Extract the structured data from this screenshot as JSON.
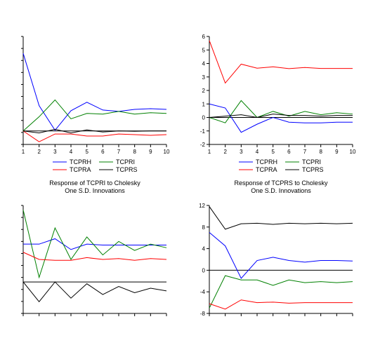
{
  "chart_data": [
    {
      "type": "line",
      "title": "",
      "x": [
        1,
        2,
        3,
        4,
        5,
        6,
        7,
        8,
        9,
        10
      ],
      "xticks": [
        "1",
        "2",
        "3",
        "4",
        "5",
        "6",
        "7",
        "8",
        "9",
        "10"
      ],
      "ylim": [
        -0.4,
        2.8
      ],
      "yticks": [],
      "zero_line": true,
      "series": [
        {
          "name": "TCPRH",
          "color": "#0000ff",
          "values": [
            2.3,
            0.75,
            0.02,
            0.6,
            0.85,
            0.62,
            0.58,
            0.64,
            0.66,
            0.64
          ]
        },
        {
          "name": "TCPRI",
          "color": "#008000",
          "values": [
            0.0,
            0.42,
            0.92,
            0.36,
            0.52,
            0.5,
            0.58,
            0.5,
            0.54,
            0.52
          ]
        },
        {
          "name": "TCPRA",
          "color": "#ff0000",
          "values": [
            0.0,
            -0.32,
            -0.09,
            -0.09,
            -0.15,
            -0.15,
            -0.09,
            -0.11,
            -0.13,
            -0.11
          ]
        },
        {
          "name": "TCPRS",
          "color": "#000000",
          "values": [
            0.0,
            -0.06,
            0.05,
            -0.06,
            0.03,
            -0.03,
            0.0,
            -0.01,
            0.0,
            0.0
          ]
        }
      ],
      "legend": {
        "placement": "bottom",
        "entries": [
          "TCPRH",
          "TCPRI",
          "TCPRA",
          "TCPRS"
        ]
      }
    },
    {
      "type": "line",
      "title": "",
      "x": [
        1,
        2,
        3,
        4,
        5,
        6,
        7,
        8,
        9,
        10
      ],
      "xticks": [
        "1",
        "2",
        "3",
        "4",
        "5",
        "6",
        "7",
        "8",
        "9",
        "10"
      ],
      "ylim": [
        -2,
        6
      ],
      "yticks": [
        "-2",
        "-1",
        "0",
        "1",
        "2",
        "3",
        "4",
        "5",
        "6"
      ],
      "zero_line": true,
      "series": [
        {
          "name": "TCPRH",
          "color": "#0000ff",
          "values": [
            1.0,
            0.7,
            -1.1,
            -0.5,
            0.0,
            -0.35,
            -0.4,
            -0.4,
            -0.35,
            -0.35
          ]
        },
        {
          "name": "TCPRI",
          "color": "#008000",
          "values": [
            0.0,
            -0.4,
            1.25,
            0.0,
            0.45,
            0.1,
            0.45,
            0.2,
            0.35,
            0.25
          ]
        },
        {
          "name": "TCPRA",
          "color": "#ff0000",
          "values": [
            5.7,
            2.55,
            3.95,
            3.65,
            3.75,
            3.62,
            3.7,
            3.63,
            3.63,
            3.63
          ]
        },
        {
          "name": "TCPRS",
          "color": "#000000",
          "values": [
            0.0,
            0.1,
            0.2,
            0.0,
            0.25,
            0.15,
            0.15,
            0.1,
            0.15,
            0.15
          ]
        }
      ],
      "legend": {
        "placement": "bottom",
        "entries": [
          "TCPRH",
          "TCPRI",
          "TCPRA",
          "TCPRS"
        ]
      }
    },
    {
      "type": "line",
      "title": "Response of TCPRI to Cholesky\nOne S.D. Innovations",
      "x": [
        1,
        2,
        3,
        4,
        5,
        6,
        7,
        8,
        9,
        10
      ],
      "xticks": [],
      "ylim": [
        -0.35,
        0.85
      ],
      "yticks": [],
      "zero_line": true,
      "series": [
        {
          "name": "TCPRH",
          "color": "#0000ff",
          "values": [
            0.42,
            0.42,
            0.48,
            0.36,
            0.42,
            0.41,
            0.41,
            0.41,
            0.41,
            0.41
          ]
        },
        {
          "name": "TCPRI",
          "color": "#008000",
          "values": [
            0.8,
            0.05,
            0.6,
            0.25,
            0.5,
            0.3,
            0.45,
            0.35,
            0.42,
            0.38
          ]
        },
        {
          "name": "TCPRA",
          "color": "#ff0000",
          "values": [
            0.33,
            0.25,
            0.24,
            0.24,
            0.27,
            0.25,
            0.26,
            0.24,
            0.26,
            0.25
          ]
        },
        {
          "name": "TCPRS",
          "color": "#000000",
          "values": [
            0.0,
            -0.22,
            0.0,
            -0.18,
            -0.02,
            -0.14,
            -0.05,
            -0.12,
            -0.07,
            -0.1
          ]
        }
      ],
      "legend": {
        "placement": "none",
        "entries": []
      }
    },
    {
      "type": "line",
      "title": "Response of TCPRS to Cholesky\nOne S.D. Innovations",
      "x": [
        1,
        2,
        3,
        4,
        5,
        6,
        7,
        8,
        9,
        10
      ],
      "xticks": [],
      "ylim": [
        -8,
        12
      ],
      "yticks": [
        "-8",
        "-4",
        "0",
        "4",
        "8",
        "12"
      ],
      "zero_line": true,
      "series": [
        {
          "name": "TCPRH",
          "color": "#0000ff",
          "values": [
            7.0,
            4.5,
            -1.5,
            1.8,
            2.4,
            1.8,
            1.5,
            1.8,
            1.8,
            1.7
          ]
        },
        {
          "name": "TCPRI",
          "color": "#008000",
          "values": [
            -7.0,
            -1.0,
            -1.8,
            -1.8,
            -2.8,
            -1.8,
            -2.3,
            -2.1,
            -2.3,
            -2.1
          ]
        },
        {
          "name": "TCPRA",
          "color": "#ff0000",
          "values": [
            -6.2,
            -7.2,
            -5.5,
            -6.0,
            -5.9,
            -6.1,
            -6.0,
            -6.0,
            -6.0,
            -6.0
          ]
        },
        {
          "name": "TCPRS",
          "color": "#000000",
          "values": [
            11.8,
            7.6,
            8.6,
            8.7,
            8.5,
            8.7,
            8.6,
            8.7,
            8.6,
            8.7
          ]
        }
      ],
      "legend": {
        "placement": "none",
        "entries": []
      }
    }
  ]
}
